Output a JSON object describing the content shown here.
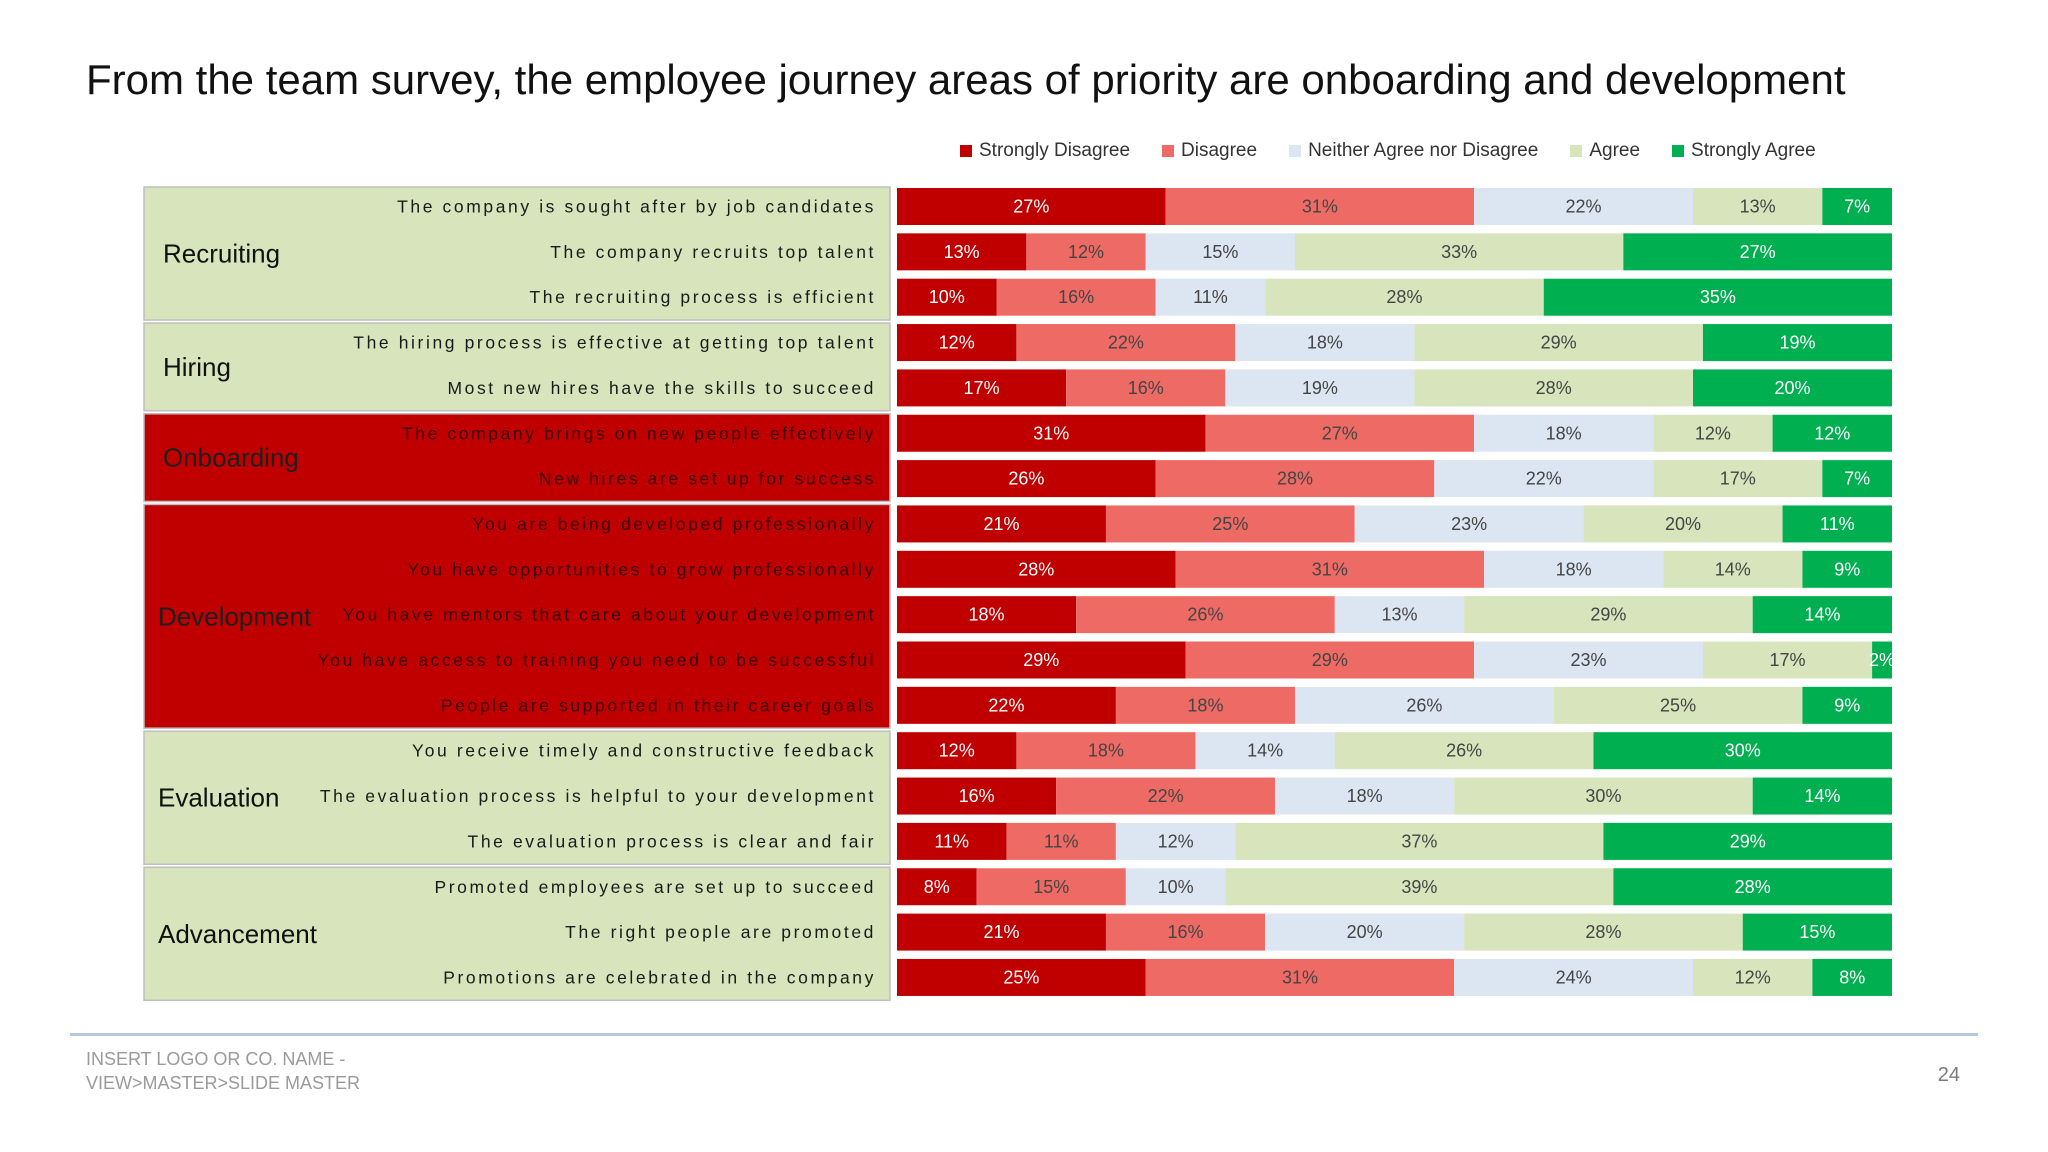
{
  "page": {
    "title": "From the team survey, the employee journey areas of priority are onboarding and development",
    "footer_line1": "INSERT LOGO OR CO. NAME -",
    "footer_line2": "VIEW>MASTER>SLIDE MASTER",
    "page_number": "24"
  },
  "chart_data": {
    "type": "bar",
    "orientation": "horizontal",
    "stacked": "100%",
    "title": "",
    "xlabel": "",
    "ylabel": "",
    "xlim": [
      0,
      100
    ],
    "legend_position": "top",
    "grid": false,
    "series": [
      {
        "name": "Strongly Disagree",
        "color": "#c00000"
      },
      {
        "name": "Disagree",
        "color": "#ee6b65"
      },
      {
        "name": "Neither Agree nor Disagree",
        "color": "#dce6f2"
      },
      {
        "name": "Agree",
        "color": "#d8e4bc"
      },
      {
        "name": "Strongly Agree",
        "color": "#00b050"
      }
    ],
    "groups": [
      {
        "name": "Recruiting",
        "highlight": false,
        "items": [
          {
            "label": "The company is sought after by job candidates",
            "values": [
              27,
              31,
              22,
              13,
              7
            ]
          },
          {
            "label": "The company recruits top talent",
            "values": [
              13,
              12,
              15,
              33,
              27
            ]
          },
          {
            "label": "The recruiting process is efficient",
            "values": [
              10,
              16,
              11,
              28,
              35
            ]
          }
        ]
      },
      {
        "name": "Hiring",
        "highlight": false,
        "items": [
          {
            "label": "The hiring process is effective at getting top talent",
            "values": [
              12,
              22,
              18,
              29,
              19
            ]
          },
          {
            "label": "Most new hires have the skills to succeed",
            "values": [
              17,
              16,
              19,
              28,
              20
            ]
          }
        ]
      },
      {
        "name": "Onboarding",
        "highlight": true,
        "items": [
          {
            "label": "The company brings on new people effectively",
            "values": [
              31,
              27,
              18,
              12,
              12
            ]
          },
          {
            "label": "New hires are set up for success",
            "values": [
              26,
              28,
              22,
              17,
              7
            ]
          }
        ]
      },
      {
        "name": "Development",
        "highlight": true,
        "items": [
          {
            "label": "You are being developed professionally",
            "values": [
              21,
              25,
              23,
              20,
              11
            ]
          },
          {
            "label": "You have opportunities to grow professionally",
            "values": [
              28,
              31,
              18,
              14,
              9
            ]
          },
          {
            "label": "You have mentors that care about your development",
            "values": [
              18,
              26,
              13,
              29,
              14
            ]
          },
          {
            "label": "You have access to training you need to be successful",
            "values": [
              29,
              29,
              23,
              17,
              2
            ]
          },
          {
            "label": "People are supported in their career goals",
            "values": [
              22,
              18,
              26,
              25,
              9
            ]
          }
        ]
      },
      {
        "name": "Evaluation",
        "highlight": false,
        "items": [
          {
            "label": "You receive timely and constructive feedback",
            "values": [
              12,
              18,
              14,
              26,
              30
            ]
          },
          {
            "label": "The evaluation process is helpful to your development",
            "values": [
              16,
              22,
              18,
              30,
              14
            ]
          },
          {
            "label": "The evaluation process is clear and fair",
            "values": [
              11,
              11,
              12,
              37,
              29
            ]
          }
        ]
      },
      {
        "name": "Advancement",
        "highlight": false,
        "items": [
          {
            "label": "Promoted employees are set up to succeed",
            "values": [
              8,
              15,
              10,
              39,
              28
            ]
          },
          {
            "label": "The right people are promoted",
            "values": [
              21,
              16,
              20,
              28,
              15
            ]
          },
          {
            "label": "Promotions are celebrated in the company",
            "values": [
              25,
              31,
              24,
              12,
              8
            ]
          }
        ]
      }
    ]
  }
}
